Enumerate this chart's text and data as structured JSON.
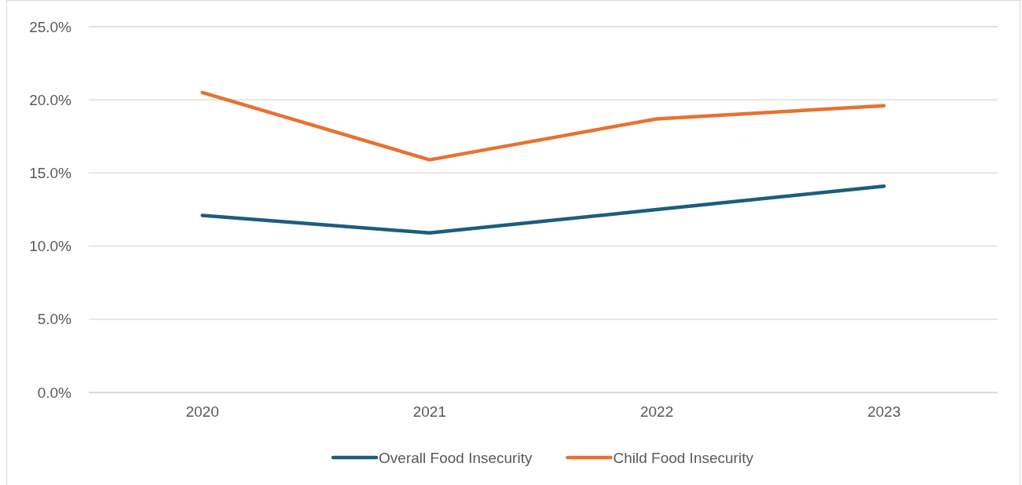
{
  "chart_data": {
    "type": "line",
    "categories": [
      "2020",
      "2021",
      "2022",
      "2023"
    ],
    "series": [
      {
        "name": "Overall Food Insecurity",
        "color": "#1b5e7e",
        "values": [
          12.1,
          10.9,
          12.5,
          14.1
        ]
      },
      {
        "name": "Child Food Insecurity",
        "color": "#e97132",
        "values": [
          20.5,
          15.9,
          18.7,
          19.6
        ]
      }
    ],
    "ylim": [
      0,
      25
    ],
    "yticks": [
      {
        "value": 0,
        "label": "0.0%"
      },
      {
        "value": 5,
        "label": "5.0%"
      },
      {
        "value": 10,
        "label": "10.0%"
      },
      {
        "value": 15,
        "label": "15.0%"
      },
      {
        "value": 20,
        "label": "20.0%"
      },
      {
        "value": 25,
        "label": "25.0%"
      }
    ],
    "grid": "y",
    "legend": "bottom",
    "marker": "none",
    "line_style": "solid"
  }
}
